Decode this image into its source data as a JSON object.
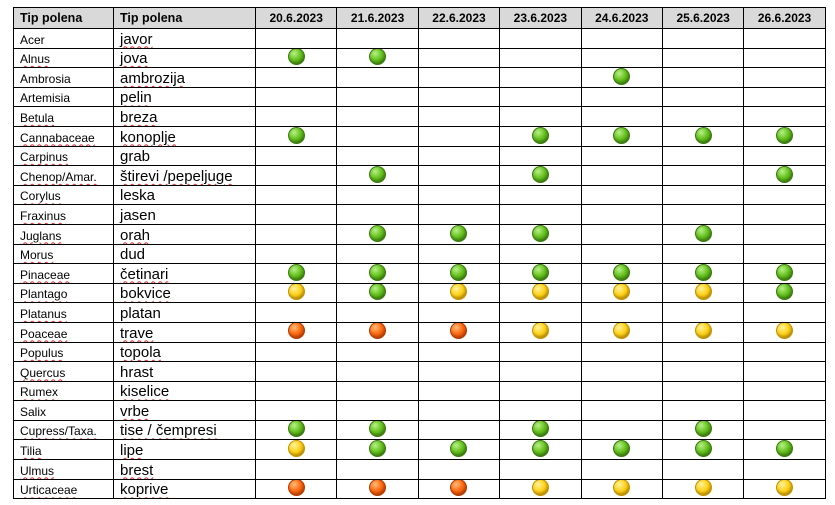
{
  "header": {
    "col1": "Tip polena",
    "col2": "Tip polena",
    "dates": [
      "20.6.2023",
      "21.6.2023",
      "22.6.2023",
      "23.6.2023",
      "24.6.2023",
      "25.6.2023",
      "26.6.2023"
    ]
  },
  "legend_colors": {
    "green": "#66c21e",
    "yellow": "#ffd21a",
    "orange": "#ff6a12"
  },
  "rows": [
    {
      "latin": "Acer",
      "local": "javor",
      "latin_spell": false,
      "local_spell": true,
      "levels": [
        null,
        null,
        null,
        null,
        null,
        null,
        null
      ]
    },
    {
      "latin": "Alnus",
      "local": "jova",
      "latin_spell": true,
      "local_spell": true,
      "levels": [
        "green",
        "green",
        null,
        null,
        null,
        null,
        null
      ]
    },
    {
      "latin": "Ambrosia",
      "local": "ambrozija",
      "latin_spell": false,
      "local_spell": true,
      "levels": [
        null,
        null,
        null,
        null,
        "green",
        null,
        null
      ]
    },
    {
      "latin": "Artemisia",
      "local": "pelin",
      "latin_spell": false,
      "local_spell": true,
      "levels": [
        null,
        null,
        null,
        null,
        null,
        null,
        null
      ]
    },
    {
      "latin": "Betula",
      "local": "breza",
      "latin_spell": true,
      "local_spell": true,
      "levels": [
        null,
        null,
        null,
        null,
        null,
        null,
        null
      ]
    },
    {
      "latin": "Cannabaceae",
      "local": "konoplje",
      "latin_spell": true,
      "local_spell": true,
      "levels": [
        "green",
        null,
        null,
        "green",
        "green",
        "green",
        "green"
      ]
    },
    {
      "latin": "Carpinus",
      "local": "grab",
      "latin_spell": true,
      "local_spell": false,
      "levels": [
        null,
        null,
        null,
        null,
        null,
        null,
        null
      ]
    },
    {
      "latin": "Chenop/Amar.",
      "local": "štirevi /pepeljuge",
      "latin_spell": true,
      "local_spell": true,
      "levels": [
        null,
        "green",
        null,
        "green",
        null,
        null,
        "green"
      ]
    },
    {
      "latin": "Corylus",
      "local": "leska",
      "latin_spell": true,
      "local_spell": false,
      "levels": [
        null,
        null,
        null,
        null,
        null,
        null,
        null
      ]
    },
    {
      "latin": "Fraxinus",
      "local": "jasen",
      "latin_spell": true,
      "local_spell": false,
      "levels": [
        null,
        null,
        null,
        null,
        null,
        null,
        null
      ]
    },
    {
      "latin": "Juglans",
      "local": "orah",
      "latin_spell": true,
      "local_spell": true,
      "levels": [
        null,
        "green",
        "green",
        "green",
        null,
        "green",
        null
      ]
    },
    {
      "latin": "Morus",
      "local": "dud",
      "latin_spell": true,
      "local_spell": false,
      "levels": [
        null,
        null,
        null,
        null,
        null,
        null,
        null
      ]
    },
    {
      "latin": "Pinaceae",
      "local": "četinari",
      "latin_spell": true,
      "local_spell": true,
      "levels": [
        "green",
        "green",
        "green",
        "green",
        "green",
        "green",
        "green"
      ]
    },
    {
      "latin": "Plantago",
      "local": "bokvice",
      "latin_spell": true,
      "local_spell": true,
      "levels": [
        "yellow",
        "green",
        "yellow",
        "yellow",
        "yellow",
        "yellow",
        "green"
      ]
    },
    {
      "latin": "Platanus",
      "local": "platan",
      "latin_spell": true,
      "local_spell": false,
      "levels": [
        null,
        null,
        null,
        null,
        null,
        null,
        null
      ]
    },
    {
      "latin": "Poaceae",
      "local": "trave",
      "latin_spell": true,
      "local_spell": true,
      "levels": [
        "orange",
        "orange",
        "orange",
        "yellow",
        "yellow",
        "yellow",
        "yellow"
      ]
    },
    {
      "latin": "Populus",
      "local": "topola",
      "latin_spell": true,
      "local_spell": true,
      "levels": [
        null,
        null,
        null,
        null,
        null,
        null,
        null
      ]
    },
    {
      "latin": "Quercus",
      "local": "hrast",
      "latin_spell": true,
      "local_spell": false,
      "levels": [
        null,
        null,
        null,
        null,
        null,
        null,
        null
      ]
    },
    {
      "latin": "Rumex",
      "local": "kiselice",
      "latin_spell": true,
      "local_spell": true,
      "levels": [
        null,
        null,
        null,
        null,
        null,
        null,
        null
      ]
    },
    {
      "latin": "Salix",
      "local": "vrbe",
      "latin_spell": false,
      "local_spell": true,
      "levels": [
        null,
        null,
        null,
        null,
        null,
        null,
        null
      ]
    },
    {
      "latin": "Cupress/Taxa.",
      "local": "tise / čempresi",
      "latin_spell": true,
      "local_spell": true,
      "levels": [
        "green",
        "green",
        null,
        "green",
        null,
        "green",
        null
      ]
    },
    {
      "latin": "Tilia",
      "local": "lipe",
      "latin_spell": true,
      "local_spell": true,
      "levels": [
        "yellow",
        "green",
        "green",
        "green",
        "green",
        "green",
        "green"
      ]
    },
    {
      "latin": "Ulmus",
      "local": "brest",
      "latin_spell": true,
      "local_spell": true,
      "levels": [
        null,
        null,
        null,
        null,
        null,
        null,
        null
      ]
    },
    {
      "latin": "Urticaceae",
      "local": "koprive",
      "latin_spell": true,
      "local_spell": true,
      "levels": [
        "orange",
        "orange",
        "orange",
        "yellow",
        "yellow",
        "yellow",
        "yellow"
      ]
    }
  ]
}
